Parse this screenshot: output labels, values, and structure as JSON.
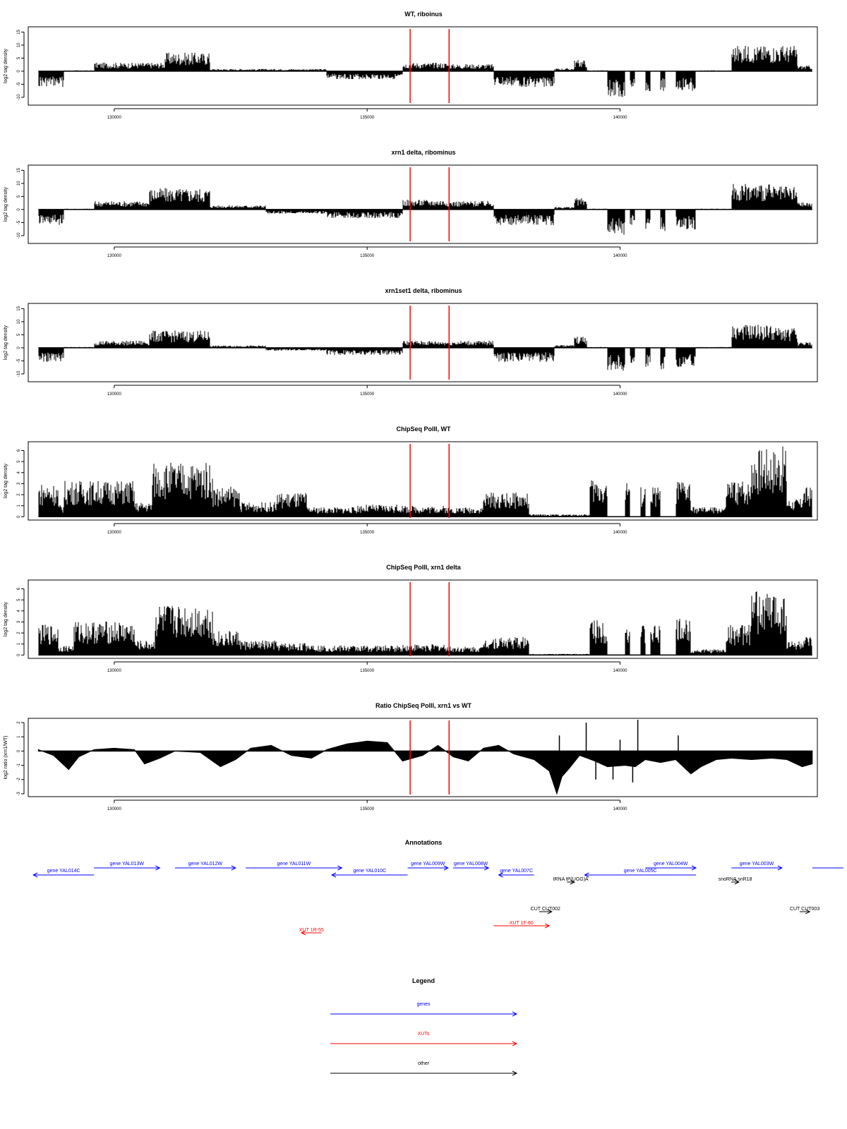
{
  "colors": {
    "gene": "#0000ff",
    "xut": "#ff0000",
    "other": "#000000",
    "marker": "#ff0000",
    "bars": "#000000"
  },
  "chart_data": [
    {
      "type": "bar",
      "title": "WT, riboinus",
      "ylabel": "log2 tag density",
      "ylim": [
        -13,
        17
      ],
      "yticks": [
        -10,
        -5,
        0,
        5,
        10,
        15
      ],
      "xlim": [
        128300,
        143900
      ],
      "xticks": [
        "130000",
        "135000",
        "140000"
      ],
      "markers": [
        135850,
        136620
      ],
      "segments": [
        [
          128500,
          129000,
          -5.5
        ],
        [
          129000,
          129600,
          0.3
        ],
        [
          129600,
          131000,
          3
        ],
        [
          131000,
          131900,
          6.5
        ],
        [
          131900,
          134200,
          0.8
        ],
        [
          134200,
          135700,
          -2.8
        ],
        [
          135700,
          136600,
          3
        ],
        [
          136600,
          137500,
          2.5
        ],
        [
          137500,
          138700,
          -5.5
        ],
        [
          138700,
          139100,
          1
        ],
        [
          139100,
          139350,
          4
        ],
        [
          139350,
          139750,
          0.3
        ],
        [
          139750,
          140100,
          -9
        ],
        [
          140100,
          140200,
          0
        ],
        [
          140200,
          140300,
          -6
        ],
        [
          140300,
          140500,
          0
        ],
        [
          140500,
          140600,
          -7
        ],
        [
          140600,
          140800,
          0
        ],
        [
          140800,
          140900,
          -7
        ],
        [
          140900,
          141100,
          0
        ],
        [
          141100,
          141500,
          -7
        ],
        [
          141500,
          142200,
          0.3
        ],
        [
          142200,
          143000,
          9
        ],
        [
          143000,
          143500,
          9
        ],
        [
          143500,
          143800,
          2
        ]
      ]
    },
    {
      "type": "bar",
      "title": "xrn1 delta, ribominus",
      "ylabel": "log2 tag density",
      "ylim": [
        -13,
        17
      ],
      "yticks": [
        -10,
        -5,
        0,
        5,
        10,
        15
      ],
      "xlim": [
        128300,
        143900
      ],
      "xticks": [
        "130000",
        "135000",
        "140000"
      ],
      "markers": [
        135850,
        136620
      ],
      "segments": [
        [
          128500,
          129000,
          -5.5
        ],
        [
          129000,
          129600,
          0.3
        ],
        [
          129600,
          130700,
          3
        ],
        [
          130700,
          131900,
          7.5
        ],
        [
          131900,
          133000,
          1.5
        ],
        [
          133000,
          134200,
          -1.5
        ],
        [
          134200,
          135700,
          -3
        ],
        [
          135700,
          136600,
          3.5
        ],
        [
          136600,
          137500,
          3
        ],
        [
          137500,
          138700,
          -5.5
        ],
        [
          138700,
          139100,
          1
        ],
        [
          139100,
          139350,
          4
        ],
        [
          139350,
          139750,
          0.3
        ],
        [
          139750,
          140100,
          -9
        ],
        [
          140100,
          140200,
          0
        ],
        [
          140200,
          140300,
          -6
        ],
        [
          140300,
          140500,
          0
        ],
        [
          140500,
          140600,
          -7
        ],
        [
          140600,
          140800,
          0
        ],
        [
          140800,
          140900,
          -8
        ],
        [
          140900,
          141100,
          0
        ],
        [
          141100,
          141500,
          -7
        ],
        [
          141500,
          142200,
          0.3
        ],
        [
          142200,
          143000,
          9
        ],
        [
          143000,
          143500,
          8
        ],
        [
          143500,
          143800,
          2.5
        ]
      ]
    },
    {
      "type": "bar",
      "title": "xrn1set1 delta, ribominus",
      "ylabel": "log2 tag density",
      "ylim": [
        -13,
        17
      ],
      "yticks": [
        -10,
        -5,
        0,
        5,
        10,
        15
      ],
      "xlim": [
        128300,
        143900
      ],
      "xticks": [
        "130000",
        "135000",
        "140000"
      ],
      "markers": [
        135850,
        136620
      ],
      "segments": [
        [
          128500,
          129000,
          -5
        ],
        [
          129000,
          129600,
          0.3
        ],
        [
          129600,
          130700,
          2.5
        ],
        [
          130700,
          131900,
          6
        ],
        [
          131900,
          133000,
          0.8
        ],
        [
          133000,
          134200,
          -1
        ],
        [
          134200,
          135700,
          -2.5
        ],
        [
          135700,
          136600,
          2.5
        ],
        [
          136600,
          137500,
          2.5
        ],
        [
          137500,
          138700,
          -5
        ],
        [
          138700,
          139100,
          1
        ],
        [
          139100,
          139350,
          4
        ],
        [
          139350,
          139750,
          0.3
        ],
        [
          139750,
          140100,
          -8
        ],
        [
          140100,
          140200,
          0
        ],
        [
          140200,
          140300,
          -6
        ],
        [
          140300,
          140500,
          0
        ],
        [
          140500,
          140600,
          -7
        ],
        [
          140600,
          140800,
          0
        ],
        [
          140800,
          140900,
          -8
        ],
        [
          140900,
          141100,
          0
        ],
        [
          141100,
          141500,
          -7
        ],
        [
          141500,
          142200,
          0.3
        ],
        [
          142200,
          143000,
          8
        ],
        [
          143000,
          143500,
          7
        ],
        [
          143500,
          143800,
          2
        ]
      ]
    },
    {
      "type": "bar",
      "title": "ChipSeq PolII, WT",
      "ylabel": "log2 tag density",
      "ylim": [
        -0.3,
        6.8
      ],
      "yticks": [
        0,
        1,
        2,
        3,
        4,
        5,
        6
      ],
      "xlim": [
        128300,
        143900
      ],
      "xticks": [
        "130000",
        "135000",
        "140000"
      ],
      "markers": [
        135850,
        136620
      ],
      "segments": [
        [
          128500,
          128900,
          2.8
        ],
        [
          128900,
          129000,
          1
        ],
        [
          129000,
          130400,
          3
        ],
        [
          130400,
          130750,
          1.2
        ],
        [
          130750,
          131950,
          4.5
        ],
        [
          131950,
          132500,
          2.5
        ],
        [
          132500,
          133200,
          1.2
        ],
        [
          133200,
          133800,
          2
        ],
        [
          133800,
          134800,
          0.8
        ],
        [
          134800,
          135700,
          1
        ],
        [
          135700,
          136600,
          0.9
        ],
        [
          136600,
          137300,
          0.8
        ],
        [
          137300,
          138200,
          2
        ],
        [
          138200,
          139400,
          0.2
        ],
        [
          139400,
          139750,
          3.2
        ],
        [
          139750,
          140100,
          0
        ],
        [
          140100,
          140200,
          3
        ],
        [
          140200,
          140400,
          0
        ],
        [
          140400,
          140500,
          2.5
        ],
        [
          140500,
          140600,
          0
        ],
        [
          140600,
          140800,
          2.5
        ],
        [
          140800,
          141100,
          0
        ],
        [
          141100,
          141400,
          3
        ],
        [
          141400,
          142100,
          0.8
        ],
        [
          142100,
          142600,
          3
        ],
        [
          142600,
          143300,
          5.8
        ],
        [
          143300,
          143600,
          1.5
        ],
        [
          143600,
          143800,
          2.5
        ]
      ]
    },
    {
      "type": "bar",
      "title": "ChipSeq PolII, xrn1 delta",
      "ylabel": "log2 tag density",
      "ylim": [
        -0.3,
        6.8
      ],
      "yticks": [
        0,
        1,
        2,
        3,
        4,
        5,
        6
      ],
      "xlim": [
        128300,
        143900
      ],
      "xticks": [
        "130000",
        "135000",
        "140000"
      ],
      "markers": [
        135850,
        136620
      ],
      "segments": [
        [
          128500,
          128900,
          2.5
        ],
        [
          128900,
          129200,
          0.8
        ],
        [
          129200,
          130400,
          2.8
        ],
        [
          130400,
          130800,
          1.2
        ],
        [
          130800,
          131950,
          4.2
        ],
        [
          131950,
          132500,
          2
        ],
        [
          132500,
          133200,
          1.2
        ],
        [
          133200,
          134000,
          1
        ],
        [
          134000,
          135700,
          0.8
        ],
        [
          135700,
          136600,
          0.9
        ],
        [
          136600,
          137300,
          0.7
        ],
        [
          137300,
          138200,
          1.5
        ],
        [
          138200,
          139400,
          0.1
        ],
        [
          139400,
          139750,
          3
        ],
        [
          139750,
          140100,
          0
        ],
        [
          140100,
          140200,
          2.8
        ],
        [
          140200,
          140400,
          0
        ],
        [
          140400,
          140500,
          2.5
        ],
        [
          140500,
          140600,
          0
        ],
        [
          140600,
          140800,
          2.5
        ],
        [
          140800,
          141100,
          0
        ],
        [
          141100,
          141400,
          3
        ],
        [
          141400,
          142100,
          0.5
        ],
        [
          142100,
          142600,
          2.5
        ],
        [
          142600,
          143300,
          5.3
        ],
        [
          143300,
          143600,
          1.2
        ],
        [
          143600,
          143800,
          1.5
        ]
      ]
    },
    {
      "type": "area",
      "title": "Ratio ChipSeq PolII, xrn1 vs WT",
      "ylabel": "log2 ratio (xrn1/WT)",
      "ylim": [
        -3.2,
        2.3
      ],
      "yticks": [
        -3,
        -2,
        -1,
        0,
        1,
        2
      ],
      "xlim": [
        128300,
        143900
      ],
      "xticks": [
        "130000",
        "135000",
        "140000"
      ],
      "markers": [
        135850,
        136620
      ],
      "points": [
        [
          128500,
          0.1
        ],
        [
          128800,
          -0.3
        ],
        [
          129100,
          -1.3
        ],
        [
          129300,
          -0.4
        ],
        [
          129600,
          0.1
        ],
        [
          130000,
          0.2
        ],
        [
          130400,
          0.1
        ],
        [
          130600,
          -0.9
        ],
        [
          130900,
          -0.5
        ],
        [
          131200,
          0
        ],
        [
          131700,
          -0.1
        ],
        [
          132100,
          -1.1
        ],
        [
          132400,
          -0.6
        ],
        [
          132700,
          0.2
        ],
        [
          133100,
          0.4
        ],
        [
          133500,
          -0.3
        ],
        [
          133900,
          -0.5
        ],
        [
          134200,
          0.1
        ],
        [
          134600,
          0.5
        ],
        [
          135000,
          0.7
        ],
        [
          135400,
          0.6
        ],
        [
          135700,
          -0.7
        ],
        [
          136100,
          -0.3
        ],
        [
          136400,
          0.4
        ],
        [
          136700,
          -0.4
        ],
        [
          137000,
          -0.7
        ],
        [
          137300,
          0.2
        ],
        [
          137600,
          0.4
        ],
        [
          137900,
          -0.2
        ],
        [
          138300,
          -0.6
        ],
        [
          138600,
          -1.4
        ],
        [
          138750,
          -3
        ],
        [
          138850,
          -1.8
        ],
        [
          139000,
          -1.2
        ],
        [
          139200,
          -0.3
        ],
        [
          139500,
          -0.7
        ],
        [
          139750,
          -1.1
        ],
        [
          140100,
          -1
        ],
        [
          140300,
          -1.1
        ],
        [
          140500,
          -0.6
        ],
        [
          140800,
          -0.8
        ],
        [
          141100,
          -0.6
        ],
        [
          141400,
          -1.6
        ],
        [
          141600,
          -1.1
        ],
        [
          141900,
          -0.6
        ],
        [
          142200,
          -0.5
        ],
        [
          142600,
          -0.6
        ],
        [
          143000,
          -0.5
        ],
        [
          143300,
          -0.6
        ],
        [
          143600,
          -1.1
        ],
        [
          143800,
          -0.9
        ]
      ],
      "spikes": [
        [
          138800,
          1.1
        ],
        [
          139330,
          2
        ],
        [
          140000,
          0.8
        ],
        [
          140350,
          2.2
        ],
        [
          141150,
          1.1
        ],
        [
          139520,
          -2
        ],
        [
          139860,
          -2
        ],
        [
          140250,
          -2.2
        ]
      ]
    }
  ],
  "annotations": {
    "title": "Annotations",
    "xlim": [
      128300,
      143900
    ],
    "features": [
      {
        "label": "gene YAL014C",
        "kind": "gene",
        "dir": "left",
        "x1": 128400,
        "x2": 129600,
        "row": 1
      },
      {
        "label": "gene YAL013W",
        "kind": "gene",
        "dir": "right",
        "x1": 129600,
        "x2": 130900,
        "row": 0
      },
      {
        "label": "gene YAL012W",
        "kind": "gene",
        "dir": "right",
        "x1": 131200,
        "x2": 132400,
        "row": 0
      },
      {
        "label": "gene YAL011W",
        "kind": "gene",
        "dir": "right",
        "x1": 132600,
        "x2": 134500,
        "row": 0
      },
      {
        "label": "gene YAL010C",
        "kind": "gene",
        "dir": "left",
        "x1": 134300,
        "x2": 135800,
        "row": 1
      },
      {
        "label": "gene YAL009W",
        "kind": "gene",
        "dir": "right",
        "x1": 135800,
        "x2": 136600,
        "row": 0
      },
      {
        "label": "gene YAL008W",
        "kind": "gene",
        "dir": "right",
        "x1": 136700,
        "x2": 137400,
        "row": 0
      },
      {
        "label": "gene YAL007C",
        "kind": "gene",
        "dir": "left",
        "x1": 137600,
        "x2": 138300,
        "row": 1
      },
      {
        "label": "gene YAL005C",
        "kind": "gene",
        "dir": "left",
        "x1": 139300,
        "x2": 141500,
        "row": 1
      },
      {
        "label": "gene YAL004W",
        "kind": "gene",
        "dir": "right",
        "x1": 140500,
        "x2": 141500,
        "row": 0
      },
      {
        "label": "gene YAL003W",
        "kind": "gene",
        "dir": "right",
        "x1": 142200,
        "x2": 143200,
        "row": 0
      },
      {
        "label": "",
        "kind": "gene",
        "dir": "none",
        "x1": 143800,
        "x2": 144500,
        "row": 0
      },
      {
        "label": "tRNA tP(UGG)A",
        "kind": "other",
        "dir": "right",
        "x1": 138950,
        "x2": 139100,
        "row": 2
      },
      {
        "label": "snoRNA snR18",
        "kind": "other",
        "dir": "right",
        "x1": 142200,
        "x2": 142350,
        "row": 2
      },
      {
        "label": "CUT CUT002",
        "kind": "other",
        "dir": "right",
        "x1": 138400,
        "x2": 138650,
        "row": 3
      },
      {
        "label": "CUT CUT003",
        "kind": "other",
        "dir": "right",
        "x1": 143550,
        "x2": 143750,
        "row": 3
      },
      {
        "label": "XUT 1F-60",
        "kind": "xut",
        "dir": "right",
        "x1": 137500,
        "x2": 138600,
        "row": 4
      },
      {
        "label": "XUT 1R-55",
        "kind": "xut",
        "dir": "left",
        "x1": 133700,
        "x2": 134100,
        "row": 5
      }
    ]
  },
  "legend": {
    "title": "Legend",
    "items": [
      {
        "label": "genes",
        "kind": "gene"
      },
      {
        "label": "XUTs",
        "kind": "xut"
      },
      {
        "label": "other",
        "kind": "other"
      }
    ]
  }
}
